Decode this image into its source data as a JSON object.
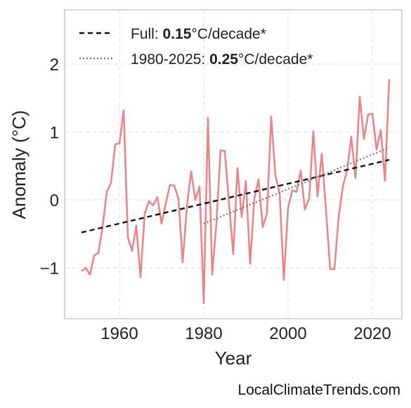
{
  "chart_data": {
    "type": "line",
    "title": "",
    "xlabel": "Year",
    "ylabel": "Anomaly (°C)",
    "xlim": [
      1947,
      2027
    ],
    "ylim": [
      -1.75,
      2.8
    ],
    "xticks": [
      1960,
      1980,
      2000,
      2020
    ],
    "yticks": [
      -1,
      0,
      1,
      2
    ],
    "ytick_labels": [
      "−1",
      "0",
      "1",
      "2"
    ],
    "grid": true,
    "legend_position": "top-left",
    "series": [
      {
        "role": "anomaly",
        "color": "#e8878b",
        "x": [
          1951,
          1952,
          1953,
          1954,
          1955,
          1956,
          1957,
          1958,
          1959,
          1960,
          1961,
          1962,
          1963,
          1964,
          1965,
          1966,
          1967,
          1968,
          1969,
          1970,
          1971,
          1972,
          1973,
          1974,
          1975,
          1976,
          1977,
          1978,
          1979,
          1980,
          1981,
          1982,
          1983,
          1984,
          1985,
          1986,
          1987,
          1988,
          1989,
          1990,
          1991,
          1992,
          1993,
          1994,
          1995,
          1996,
          1997,
          1998,
          1999,
          2000,
          2001,
          2002,
          2003,
          2004,
          2005,
          2006,
          2007,
          2008,
          2009,
          2010,
          2011,
          2012,
          2013,
          2014,
          2015,
          2016,
          2017,
          2018,
          2019,
          2020,
          2021,
          2022,
          2023,
          2024
        ],
        "values": [
          -1.05,
          -1.0,
          -1.1,
          -0.82,
          -0.78,
          -0.4,
          0.12,
          0.25,
          0.82,
          0.83,
          1.32,
          -0.55,
          -0.75,
          -0.38,
          -1.14,
          -0.2,
          -0.02,
          -0.08,
          0.04,
          -0.35,
          -0.05,
          0.22,
          0.21,
          0.02,
          -0.92,
          -0.1,
          0.42,
          0.0,
          0.2,
          -1.52,
          1.21,
          -1.1,
          -0.35,
          0.73,
          0.72,
          -0.06,
          -0.8,
          0.47,
          -0.25,
          0.28,
          -0.94,
          0.02,
          0.3,
          -0.4,
          -0.2,
          1.23,
          0.36,
          0.1,
          -1.18,
          -0.12,
          0.14,
          0.12,
          0.43,
          -0.14,
          0.02,
          1.01,
          0.05,
          0.68,
          -0.15,
          -1.02,
          -1.02,
          -0.26,
          0.2,
          0.43,
          0.93,
          0.32,
          1.52,
          0.9,
          1.26,
          1.27,
          0.74,
          1.03,
          0.28,
          1.78
        ]
      },
      {
        "role": "trend-full",
        "color": "#111111",
        "x": [
          1951,
          2024
        ],
        "values": [
          -0.48,
          0.59
        ]
      },
      {
        "role": "trend-1980",
        "color": "#808080",
        "x": [
          1980,
          2024
        ],
        "values": [
          -0.35,
          0.77
        ]
      }
    ],
    "legend": [
      {
        "prefix": "Full: ",
        "value": "0.15",
        "suffix": "°C/decade*",
        "color": "#111111",
        "style": "dashed"
      },
      {
        "prefix": "1980-2025: ",
        "value": "0.25",
        "suffix": "°C/decade*",
        "color": "#808080",
        "style": "dotted"
      }
    ]
  },
  "watermark": "LocalClimateTrends.com"
}
